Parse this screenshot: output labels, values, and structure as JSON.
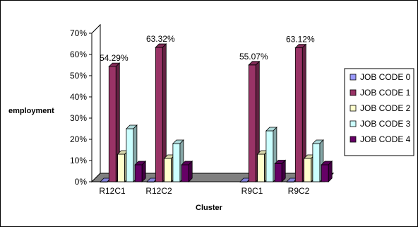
{
  "chart_data": {
    "type": "bar",
    "title": "",
    "xlabel": "Cluster",
    "ylabel": "employment",
    "categories": [
      "R12C1",
      "R12C2",
      "",
      "R9C1",
      "R9C2"
    ],
    "ylim": [
      0,
      0.7
    ],
    "yticks": [
      "0%",
      "10%",
      "20%",
      "30%",
      "40%",
      "50%",
      "60%",
      "70%"
    ],
    "grid": false,
    "legend_position": "right",
    "series": [
      {
        "name": "JOB CODE 0",
        "color": "#9999ff",
        "values": [
          0,
          0,
          null,
          0,
          0
        ]
      },
      {
        "name": "JOB CODE 1",
        "color": "#993366",
        "values": [
          0.5429,
          0.6332,
          null,
          0.5507,
          0.6312
        ]
      },
      {
        "name": "JOB CODE 2",
        "color": "#ffffcc",
        "values": [
          0.13,
          0.11,
          null,
          0.13,
          0.11
        ]
      },
      {
        "name": "JOB CODE 3",
        "color": "#ccffff",
        "values": [
          0.25,
          0.18,
          null,
          0.24,
          0.18
        ]
      },
      {
        "name": "JOB CODE 4",
        "color": "#660066",
        "values": [
          0.08,
          0.08,
          null,
          0.085,
          0.08
        ]
      }
    ],
    "data_labels": [
      "54.29%",
      "63.32%",
      "",
      "55.07%",
      "63.12%"
    ]
  }
}
